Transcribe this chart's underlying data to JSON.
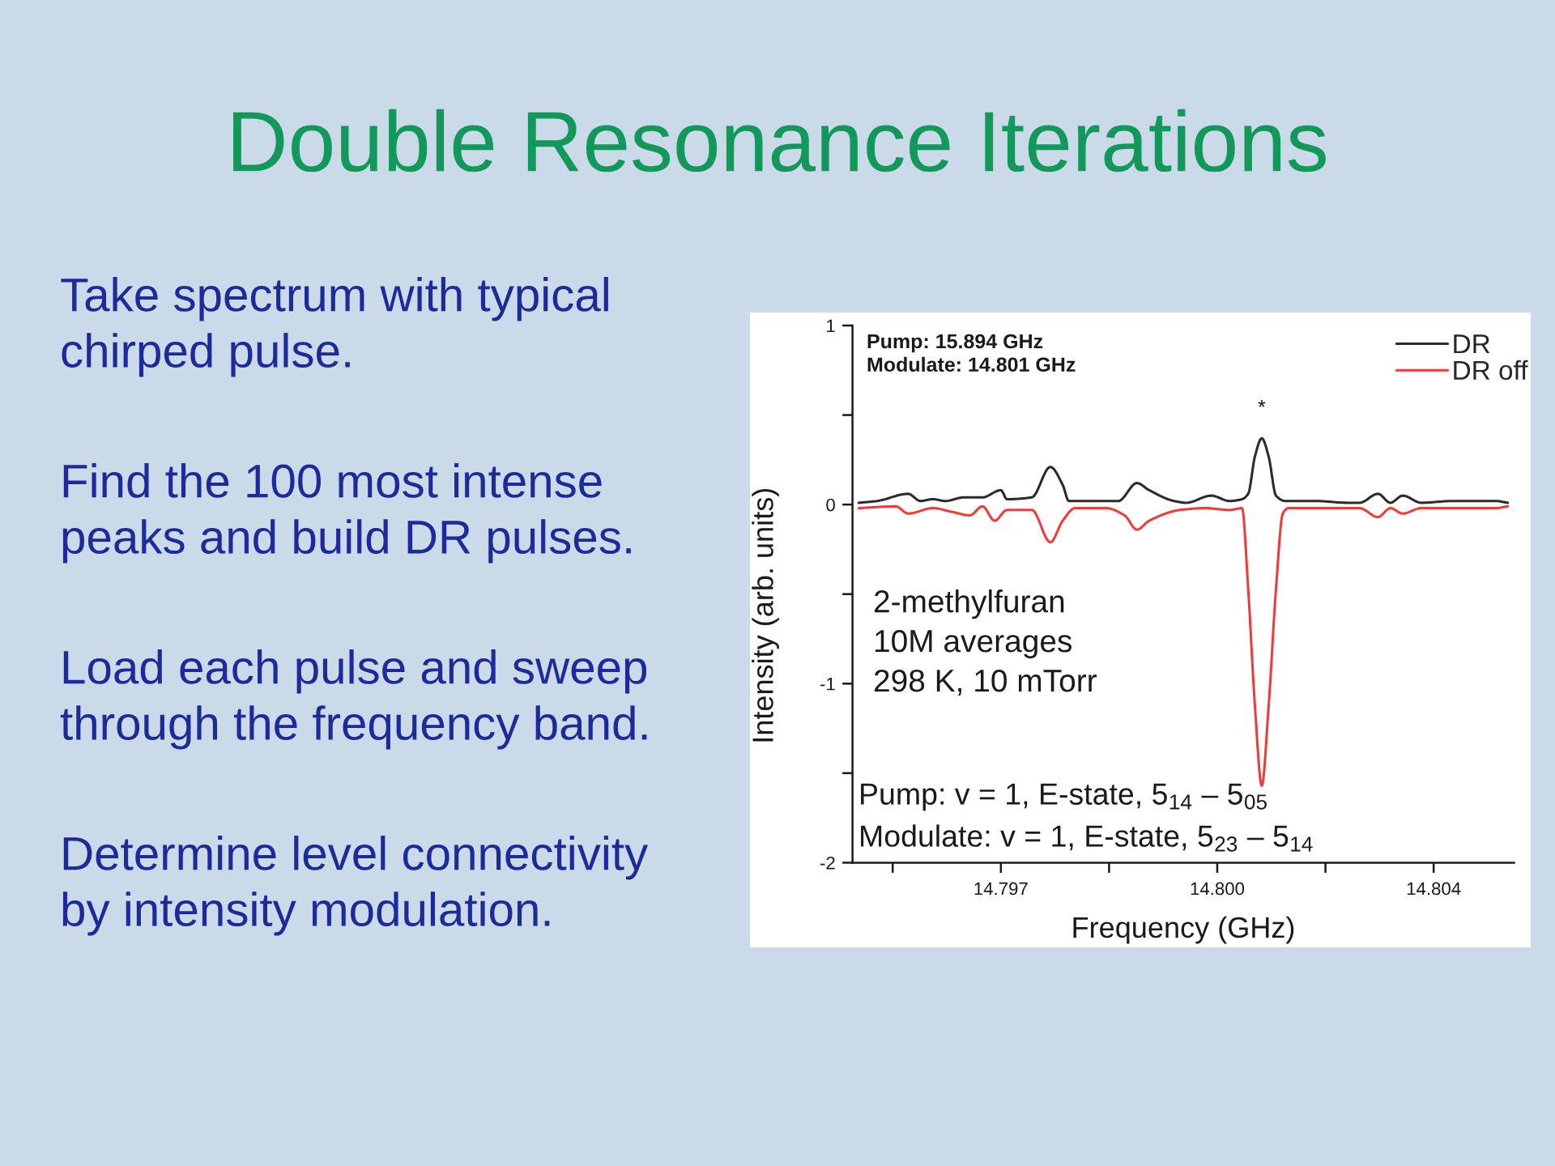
{
  "chart_data": {
    "type": "line",
    "title": "Double Resonance Iterations",
    "xlabel": "Frequency (GHz)",
    "ylabel": "Intensity (arb. units)",
    "xlim": [
      14.7946,
      14.8053
    ],
    "xticks": [
      {
        "value": 14.79525,
        "label": null
      },
      14.797,
      {
        "value": 14.79875,
        "label": null
      },
      {
        "value": 14.8005,
        "label": "14.800"
      },
      {
        "value": 14.80225,
        "label": null
      },
      14.804
    ],
    "ylim": [
      -2,
      1
    ],
    "yticks": [
      -2,
      {
        "value": -1.5,
        "label": null
      },
      -1,
      {
        "value": -0.5,
        "label": null
      },
      0,
      {
        "value": 0.5,
        "label": null
      },
      1
    ],
    "legend": "top right",
    "annotations": [
      "Take spectrum with typical\nchirped pulse.",
      "Find the 100 most intense\npeaks and build DR pulses.",
      "Load each pulse and sweep\nthrough the frequency band.",
      "Determine level connectivity\nby intensity modulation.",
      "Pump: 15.894 GHz\nModulate: 14.801 GHz",
      {
        "text": "*",
        "x": 14.80122,
        "y": 0.37
      },
      "2-methylfuran\n10M averages\n298 K, 10 mTorr",
      "Pump: v = 1, E-state, 5$_{14}$ – 5$_{05}$",
      "Modulate: v = 1, E-state, 5$_{23}$ – 5$_{14}$"
    ],
    "series": [
      {
        "name": "DR",
        "color": "#2b2b2b",
        "x": [
          14.7947,
          14.795,
          14.7955,
          14.7957,
          14.7959,
          14.7961,
          14.7964,
          14.7967,
          14.797,
          14.7971,
          14.7975,
          14.7978,
          14.798,
          14.7981,
          14.7984,
          14.7989,
          14.7992,
          14.7994,
          14.7998,
          14.8,
          14.8004,
          14.8007,
          14.8009,
          14.801,
          14.80111,
          14.80122,
          14.80133,
          14.80145,
          14.8016,
          14.8021,
          14.8026,
          14.8028,
          14.8031,
          14.8033,
          14.8035,
          14.8038,
          14.8043,
          14.805,
          14.8052
        ],
        "values": [
          0.01,
          0.02,
          0.06,
          0.02,
          0.03,
          0.02,
          0.04,
          0.04,
          0.08,
          0.03,
          0.04,
          0.21,
          0.11,
          0.02,
          0.02,
          0.02,
          0.12,
          0.08,
          0.02,
          0.01,
          0.05,
          0.02,
          0.03,
          0.06,
          0.27,
          0.37,
          0.27,
          0.05,
          0.02,
          0.02,
          0.01,
          0.01,
          0.06,
          0.01,
          0.05,
          0.01,
          0.02,
          0.02,
          0.01
        ]
      },
      {
        "name": "DR off",
        "color": "#ee3b3b",
        "x": [
          14.7947,
          14.7953,
          14.7955,
          14.7959,
          14.7962,
          14.7965,
          14.7967,
          14.7969,
          14.7971,
          14.7975,
          14.7978,
          14.798,
          14.7982,
          14.7987,
          14.799,
          14.7992,
          14.7994,
          14.7999,
          14.8003,
          14.8007,
          14.8009,
          14.801,
          14.80111,
          14.80122,
          14.80133,
          14.80145,
          14.80156,
          14.80165,
          14.8021,
          14.8026,
          14.8028,
          14.8031,
          14.8033,
          14.8035,
          14.8038,
          14.8043,
          14.805,
          14.8052
        ],
        "values": [
          -0.02,
          -0.01,
          -0.05,
          -0.02,
          -0.04,
          -0.06,
          -0.01,
          -0.09,
          -0.03,
          -0.03,
          -0.21,
          -0.09,
          -0.02,
          -0.02,
          -0.06,
          -0.14,
          -0.09,
          -0.03,
          -0.02,
          -0.03,
          -0.02,
          -0.47,
          -1.13,
          -1.57,
          -1.13,
          -0.47,
          -0.05,
          -0.02,
          -0.02,
          -0.02,
          -0.02,
          -0.07,
          -0.02,
          -0.05,
          -0.02,
          -0.02,
          -0.02,
          -0.01
        ]
      }
    ]
  }
}
